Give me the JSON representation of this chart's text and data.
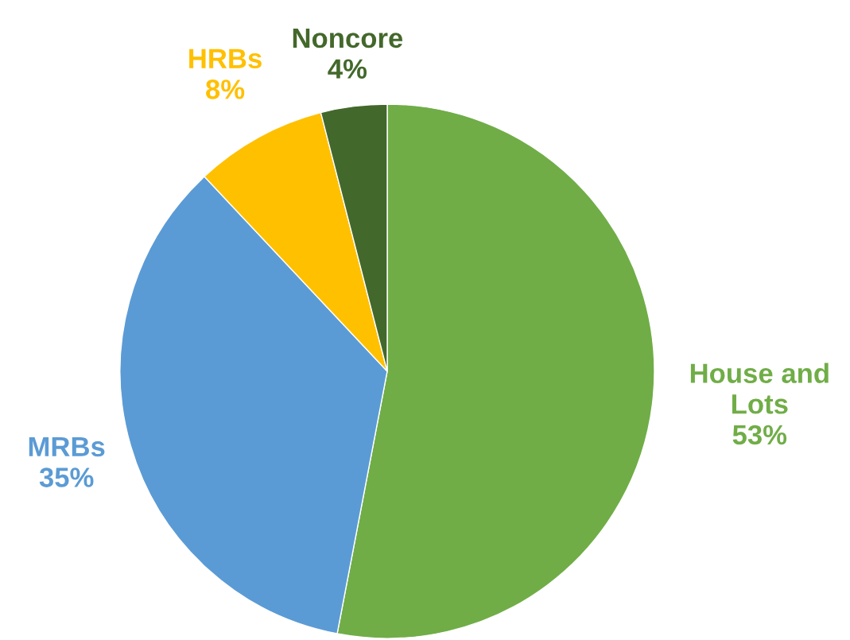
{
  "chart_data": {
    "type": "pie",
    "categories": [
      "House and Lots",
      "MRBs",
      "HRBs",
      "Noncore"
    ],
    "values": [
      53,
      35,
      8,
      4
    ],
    "colors": [
      "#70ad47",
      "#5b9bd5",
      "#ffc000",
      "#43682b"
    ],
    "value_labels": [
      "53%",
      "35%",
      "8%",
      "4%"
    ],
    "legend": false
  }
}
